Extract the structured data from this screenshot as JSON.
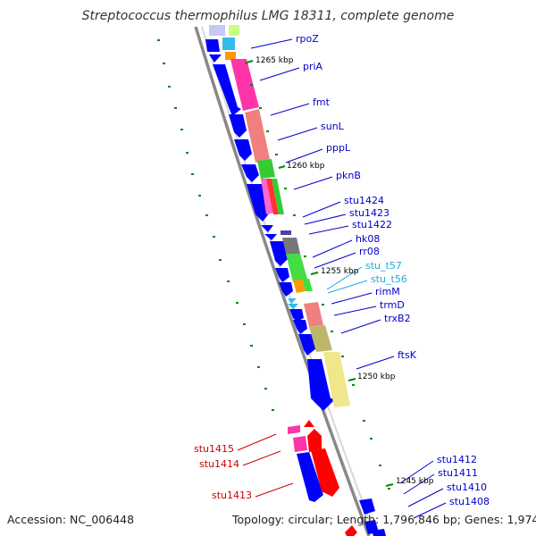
{
  "title": "Streptococcus thermophilus LMG 18311, complete genome",
  "footer": {
    "accession": "Accession: NC_006448",
    "topology": "Topology: circular; Length: 1,796,846 bp; Genes: 1,974"
  },
  "colors": {
    "cds_forward": "#0000ff",
    "cds_reverse_red": "#ff0000",
    "trna": "#33bbee",
    "label_blue": "#0000cc",
    "label_red": "#cc0000",
    "label_cyan": "#22aadd",
    "tick": "#008800",
    "backbone": "#888888"
  },
  "kbp_ticks": [
    {
      "label": "1265 kbp"
    },
    {
      "label": "1260 kbp"
    },
    {
      "label": "1255 kbp"
    },
    {
      "label": "1250 kbp"
    },
    {
      "label": "1245 kbp"
    }
  ],
  "genes": [
    {
      "label": "rpoZ",
      "color": "blue"
    },
    {
      "label": "priA",
      "color": "blue"
    },
    {
      "label": "fmt",
      "color": "blue"
    },
    {
      "label": "sunL",
      "color": "blue"
    },
    {
      "label": "pppL",
      "color": "blue"
    },
    {
      "label": "pknB",
      "color": "blue"
    },
    {
      "label": "stu1424",
      "color": "blue"
    },
    {
      "label": "stu1423",
      "color": "blue"
    },
    {
      "label": "stu1422",
      "color": "blue"
    },
    {
      "label": "hk08",
      "color": "blue"
    },
    {
      "label": "rr08",
      "color": "blue"
    },
    {
      "label": "stu_t57",
      "color": "cyan"
    },
    {
      "label": "stu_t56",
      "color": "cyan"
    },
    {
      "label": "rimM",
      "color": "blue"
    },
    {
      "label": "trmD",
      "color": "blue"
    },
    {
      "label": "trxB2",
      "color": "blue"
    },
    {
      "label": "ftsK",
      "color": "blue"
    },
    {
      "label": "stu1415",
      "color": "red"
    },
    {
      "label": "stu1414",
      "color": "red"
    },
    {
      "label": "stu1413",
      "color": "red"
    },
    {
      "label": "stu1412",
      "color": "blue"
    },
    {
      "label": "stu1411",
      "color": "blue"
    },
    {
      "label": "stu1410",
      "color": "blue"
    },
    {
      "label": "stu1408",
      "color": "blue"
    }
  ]
}
